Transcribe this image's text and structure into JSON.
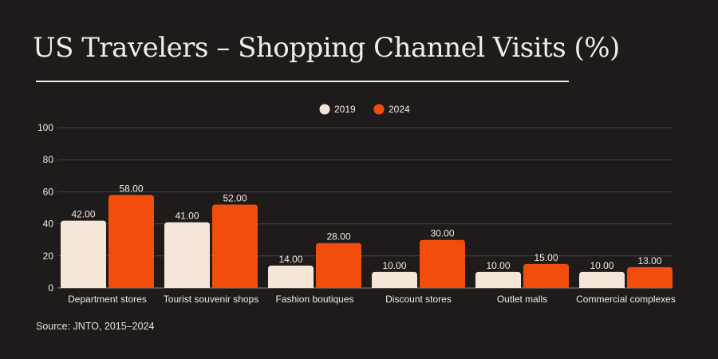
{
  "header": {
    "title": "US Travelers – Shopping Channel Visits (%)"
  },
  "footer": {
    "source": "Source: JNTO, 2015–2024"
  },
  "colors": {
    "background": "#1f1b1b",
    "grid": "#4a4545",
    "text": "#f2ebe4"
  },
  "chart_data": {
    "type": "bar",
    "title": "US Travelers – Shopping Channel Visits (%)",
    "xlabel": "",
    "ylabel": "",
    "ylim": [
      0,
      100
    ],
    "yticks": [
      0,
      20,
      40,
      60,
      80,
      100
    ],
    "grid": true,
    "legend_position": "top-center",
    "categories": [
      "Department stores",
      "Tourist souvenir shops",
      "Fashion boutiques",
      "Discount stores",
      "Outlet malls",
      "Commercial complexes"
    ],
    "series": [
      {
        "name": "2019",
        "color": "#f5e6d8",
        "values": [
          42,
          41,
          14,
          10,
          10,
          10
        ]
      },
      {
        "name": "2024",
        "color": "#f24d0c",
        "values": [
          58,
          52,
          28,
          30,
          15,
          13
        ]
      }
    ],
    "value_format_decimals": 2
  }
}
